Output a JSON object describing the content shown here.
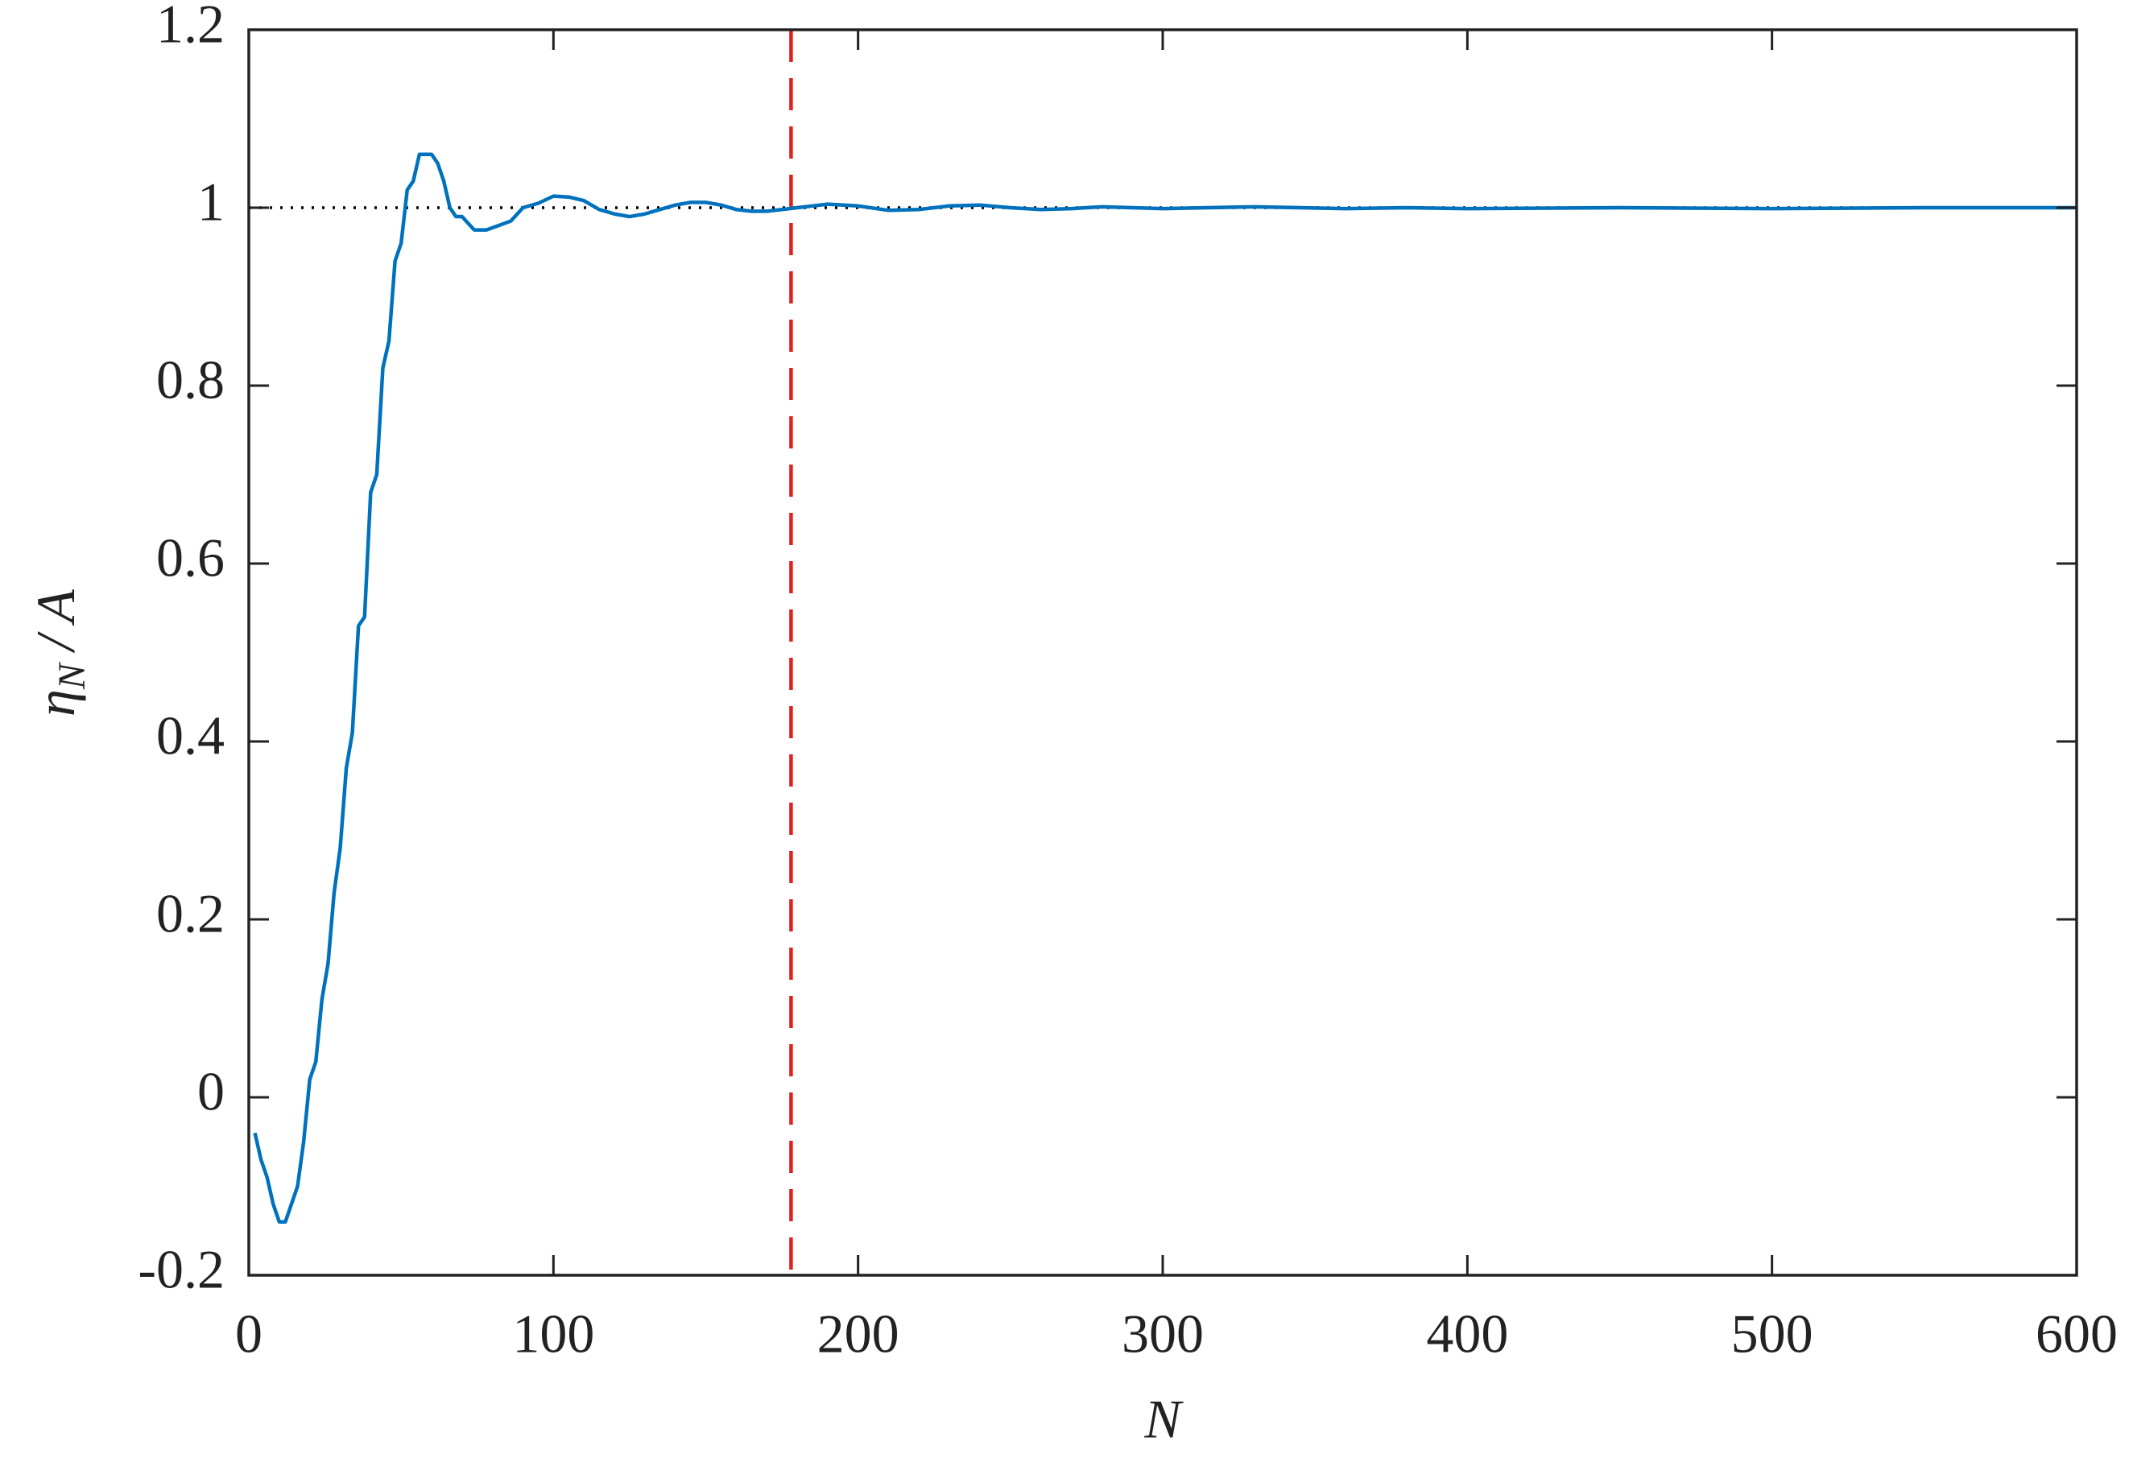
{
  "chart_data": {
    "type": "line",
    "xlabel": "N",
    "ylabel": {
      "symbol": "η",
      "subscript": "N",
      "rest": "/ A"
    },
    "x": [
      2,
      4,
      6,
      8,
      10,
      12,
      14,
      16,
      18,
      20,
      22,
      24,
      26,
      28,
      30,
      32,
      34,
      36,
      38,
      40,
      42,
      44,
      46,
      48,
      50,
      52,
      54,
      56,
      58,
      60,
      62,
      64,
      66,
      68,
      70,
      74,
      78,
      82,
      86,
      90,
      95,
      100,
      105,
      110,
      115,
      120,
      125,
      130,
      135,
      140,
      145,
      150,
      155,
      160,
      165,
      170,
      175,
      180,
      190,
      200,
      210,
      220,
      230,
      240,
      250,
      260,
      270,
      280,
      300,
      330,
      360,
      380,
      400,
      450,
      500,
      550,
      600
    ],
    "series": [
      {
        "color": "#0072bd",
        "values": [
          -0.04,
          -0.07,
          -0.09,
          -0.12,
          -0.14,
          -0.14,
          -0.12,
          -0.1,
          -0.05,
          0.02,
          0.04,
          0.11,
          0.15,
          0.23,
          0.28,
          0.37,
          0.41,
          0.53,
          0.54,
          0.68,
          0.7,
          0.82,
          0.85,
          0.94,
          0.96,
          1.02,
          1.03,
          1.06,
          1.06,
          1.06,
          1.05,
          1.03,
          1.0,
          0.99,
          0.99,
          0.975,
          0.975,
          0.98,
          0.985,
          1.0,
          1.005,
          1.013,
          1.012,
          1.008,
          0.998,
          0.993,
          0.99,
          0.993,
          0.998,
          1.003,
          1.006,
          1.006,
          1.003,
          0.998,
          0.996,
          0.996,
          0.998,
          1.0,
          1.004,
          1.002,
          0.997,
          0.998,
          1.002,
          1.003,
          1.0,
          0.998,
          0.999,
          1.001,
          0.999,
          1.001,
          0.999,
          1.0,
          0.999,
          1.0,
          0.999,
          1.0,
          1.0
        ]
      }
    ],
    "hline": {
      "y": 1,
      "color": "#000000"
    },
    "vline": {
      "x": 178,
      "color": "#e3201b"
    },
    "xlim": [
      0,
      600
    ],
    "ylim": [
      -0.2,
      1.2
    ],
    "xticks": [
      0,
      100,
      200,
      300,
      400,
      500,
      600
    ],
    "yticks": [
      -0.2,
      0,
      0.2,
      0.4,
      0.6,
      0.8,
      1,
      1.2
    ]
  }
}
